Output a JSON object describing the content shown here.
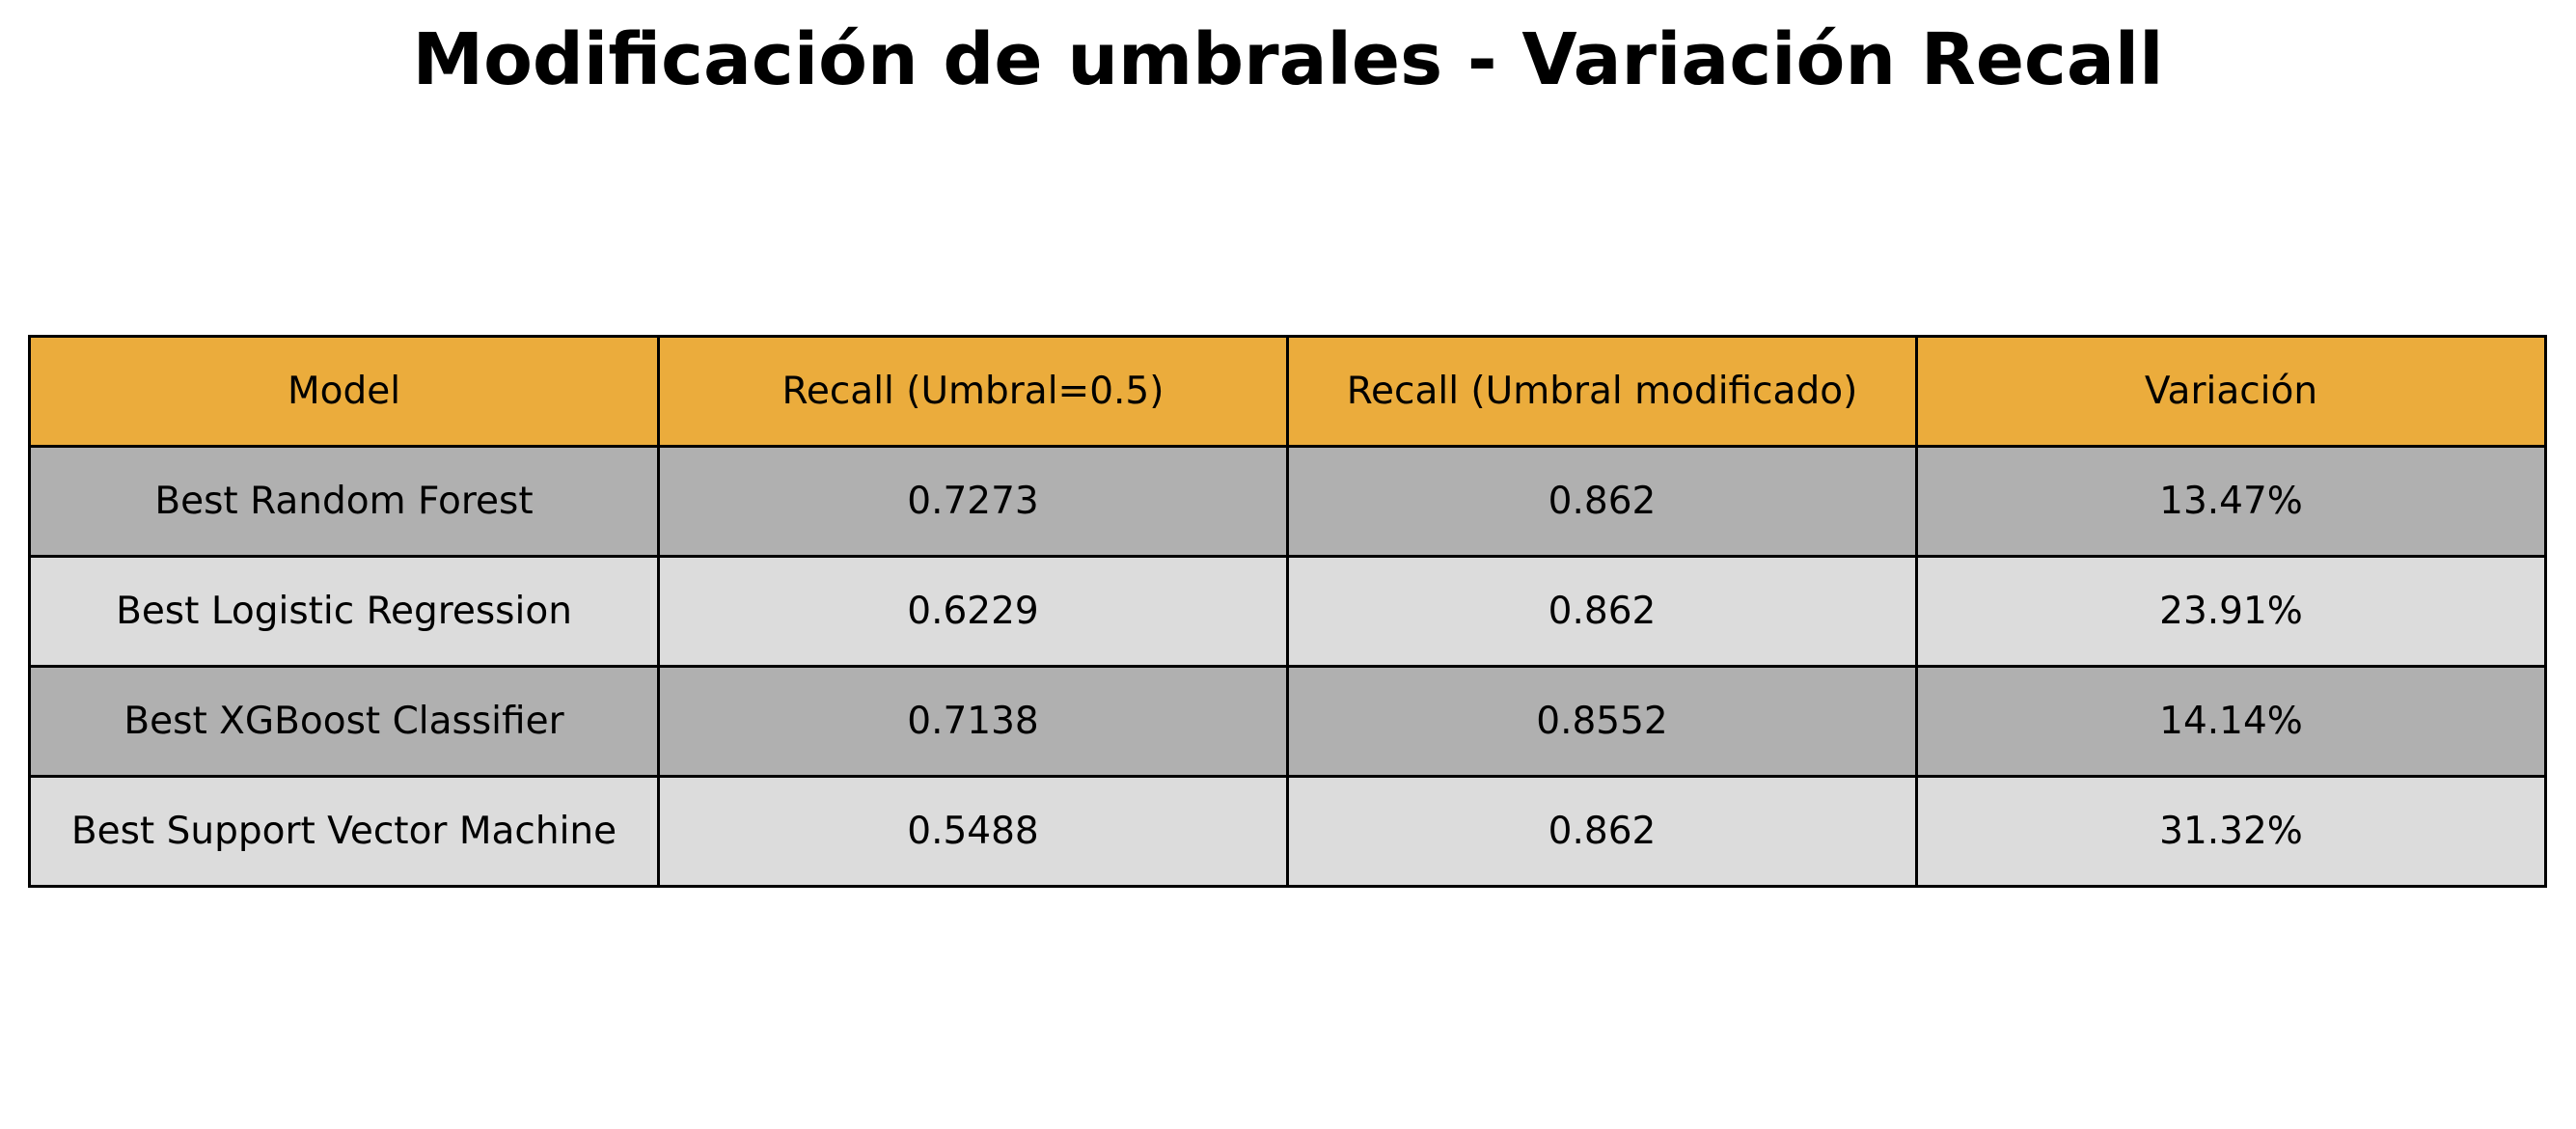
{
  "chart_data": {
    "type": "table",
    "title": "Modificación de umbrales - Variación Recall",
    "columns": [
      "Model",
      "Recall (Umbral=0.5)",
      "Recall (Umbral modificado)",
      "Variación"
    ],
    "rows": [
      [
        "Best Random Forest",
        "0.7273",
        "0.862",
        "13.47%"
      ],
      [
        "Best Logistic Regression",
        "0.6229",
        "0.862",
        "23.91%"
      ],
      [
        "Best XGBoost Classifier",
        "0.7138",
        "0.8552",
        "14.14%"
      ],
      [
        "Best Support Vector Machine",
        "0.5488",
        "0.862",
        "31.32%"
      ]
    ]
  },
  "colors": {
    "header_bg": "#EBAC3C",
    "row_dark_bg": "#B0B0B0",
    "row_light_bg": "#DCDCDC",
    "border": "#000000"
  }
}
